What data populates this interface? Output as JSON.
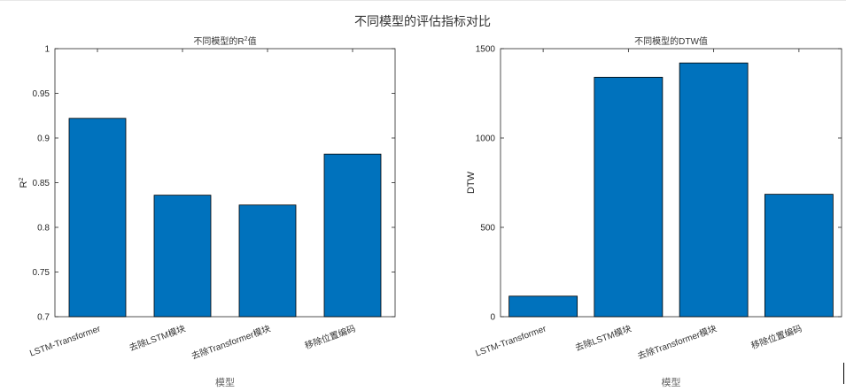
{
  "figure_title": "不同模型的评估指标对比",
  "chart_data": [
    {
      "type": "bar",
      "title": "不同模型的R²值",
      "title_main": "不同模型的R",
      "title_sup": "2",
      "title_tail": "值",
      "xlabel": "模型",
      "ylabel": "R",
      "ylabel_sup": "2",
      "categories": [
        "LSTM-Transformer",
        "去除LSTM模块",
        "去除Transformer模块",
        "移除位置编码"
      ],
      "values": [
        0.922,
        0.836,
        0.825,
        0.882
      ],
      "ylim": [
        0.7,
        1.0
      ],
      "yticks": [
        "0.7",
        "0.75",
        "0.8",
        "0.85",
        "0.9",
        "0.95",
        "1"
      ],
      "bar_color": "#0072BD",
      "grid": false
    },
    {
      "type": "bar",
      "title": "不同模型的DTW值",
      "xlabel": "模型",
      "ylabel": "DTW",
      "categories": [
        "LSTM-Transformer",
        "去除LSTM模块",
        "去除Transformer模块",
        "移除位置编码"
      ],
      "values": [
        115,
        1340,
        1420,
        685
      ],
      "ylim": [
        0,
        1500
      ],
      "yticks": [
        "0",
        "500",
        "1000",
        "1500"
      ],
      "bar_color": "#0072BD",
      "grid": false
    }
  ]
}
